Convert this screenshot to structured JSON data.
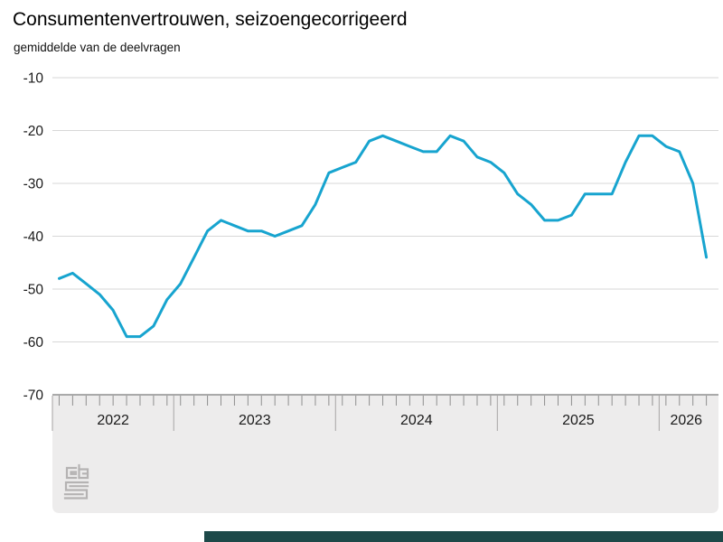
{
  "chart_data": {
    "type": "line",
    "title": "Consumentenvertrouwen, seizoengecorrigeerd",
    "subtitle": "gemiddelde van de deelvragen",
    "ylim": [
      -70,
      -10
    ],
    "y_ticks": [
      -10,
      -20,
      -30,
      -40,
      -50,
      -60,
      -70
    ],
    "grid": true,
    "legend": "none",
    "x_axis_year_labels": [
      "2022",
      "2023",
      "2024",
      "2025",
      "2026"
    ],
    "years": [
      {
        "label": "2022",
        "months": 9
      },
      {
        "label": "2023",
        "months": 12
      },
      {
        "label": "2024",
        "months": 12
      },
      {
        "label": "2025",
        "months": 12
      },
      {
        "label": "2026",
        "months": 4
      }
    ],
    "x_monthly": [
      "2022-04",
      "2022-05",
      "2022-06",
      "2022-07",
      "2022-08",
      "2022-09",
      "2022-10",
      "2022-11",
      "2022-12",
      "2023-01",
      "2023-02",
      "2023-03",
      "2023-04",
      "2023-05",
      "2023-06",
      "2023-07",
      "2023-08",
      "2023-09",
      "2023-10",
      "2023-11",
      "2023-12",
      "2024-01",
      "2024-02",
      "2024-03",
      "2024-04",
      "2024-05",
      "2024-06",
      "2024-07",
      "2024-08",
      "2024-09",
      "2024-10",
      "2024-11",
      "2024-12",
      "2025-01",
      "2025-02",
      "2025-03",
      "2025-04",
      "2025-05",
      "2025-06",
      "2025-07",
      "2025-08",
      "2025-09",
      "2025-10",
      "2025-11",
      "2025-12",
      "2026-01",
      "2026-02",
      "2026-03",
      "2026-04"
    ],
    "series": [
      {
        "name": "consumentenvertrouwen, seizoengecorrigeerd",
        "values": [
          -48,
          -47,
          -49,
          -51,
          -54,
          -59,
          -59,
          -57,
          -52,
          -49,
          -44,
          -39,
          -37,
          -38,
          -39,
          -39,
          -40,
          -39,
          -38,
          -34,
          -28,
          -27,
          -26,
          -22,
          -21,
          -22,
          -23,
          -24,
          -24,
          -21,
          -22,
          -25,
          -26,
          -28,
          -32,
          -34,
          -37,
          -37,
          -36,
          -32,
          -32,
          -32,
          -26,
          -21,
          -21,
          -23,
          -24,
          -30,
          -44
        ]
      }
    ],
    "colors": {
      "line": "#17a4cf",
      "gridline": "#d7d7d7",
      "axis_band_bg": "#edecec",
      "axis_band_border": "#8f8f8f",
      "tick": "#8f8f8f",
      "year_divider": "#b2b0b0",
      "label_text": "#1a1a1a",
      "logo": "#b5b3b3",
      "bottom_bar": "#1d4949"
    },
    "logo_text": "cbs"
  }
}
